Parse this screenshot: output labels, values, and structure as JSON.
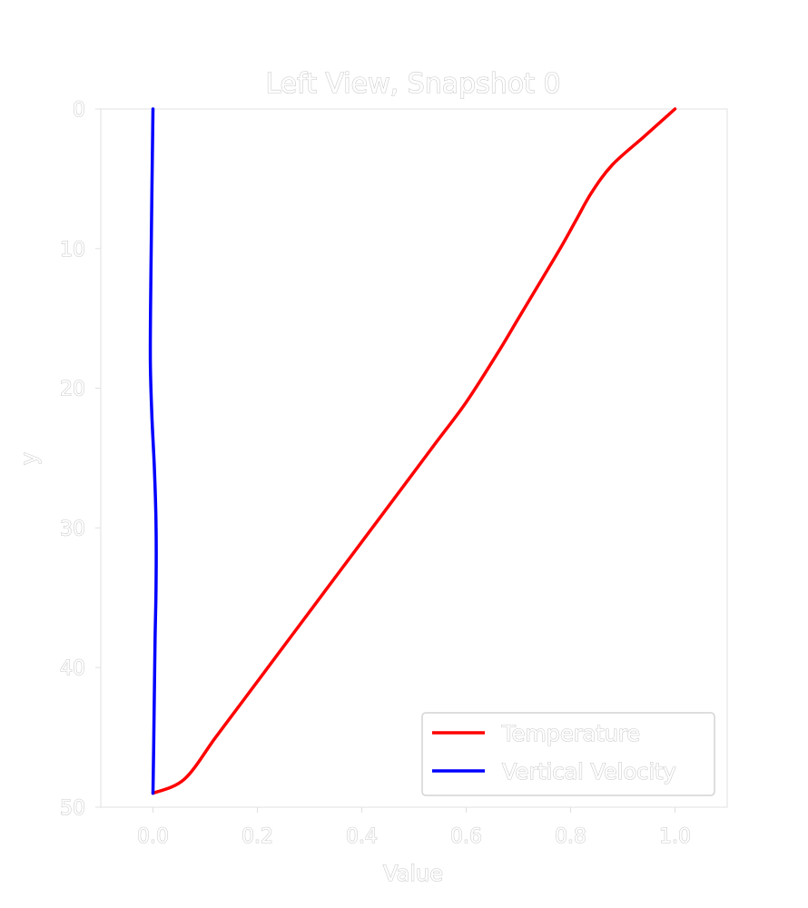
{
  "chart_data": {
    "type": "line",
    "title": "Left View, Snapshot 0",
    "xlabel": "Value",
    "ylabel": "y",
    "xlim": [
      -0.1,
      1.1
    ],
    "ylim": [
      50,
      0
    ],
    "y_inverted": true,
    "grid": false,
    "legend_position": "lower-right",
    "x_ticks": [
      0.0,
      0.2,
      0.4,
      0.6,
      0.8,
      1.0
    ],
    "x_tick_labels": [
      "0.0",
      "0.2",
      "0.4",
      "0.6",
      "0.8",
      "1.0"
    ],
    "y_ticks": [
      0,
      10,
      20,
      30,
      40,
      50
    ],
    "y_tick_labels": [
      "0",
      "10",
      "20",
      "30",
      "40",
      "50"
    ],
    "series": [
      {
        "name": "Temperature",
        "color": "#ff0000",
        "x": [
          1.0,
          0.94,
          0.88,
          0.84,
          0.81,
          0.78,
          0.74,
          0.7,
          0.66,
          0.6,
          0.54,
          0.48,
          0.42,
          0.36,
          0.3,
          0.24,
          0.18,
          0.12,
          0.06,
          0.0
        ],
        "y": [
          0,
          2,
          4,
          6,
          8,
          10,
          12.5,
          15,
          17.5,
          21,
          24,
          27,
          30,
          33,
          36,
          39,
          42,
          45,
          48,
          49
        ]
      },
      {
        "name": "Vertical Velocity",
        "color": "#0000ff",
        "x": [
          0.0,
          -0.002,
          -0.004,
          -0.005,
          -0.002,
          0.003,
          0.006,
          0.006,
          0.004,
          0.002,
          0.0
        ],
        "y": [
          0,
          6,
          12,
          18,
          22,
          26,
          30,
          34,
          38,
          44,
          49
        ]
      }
    ]
  }
}
